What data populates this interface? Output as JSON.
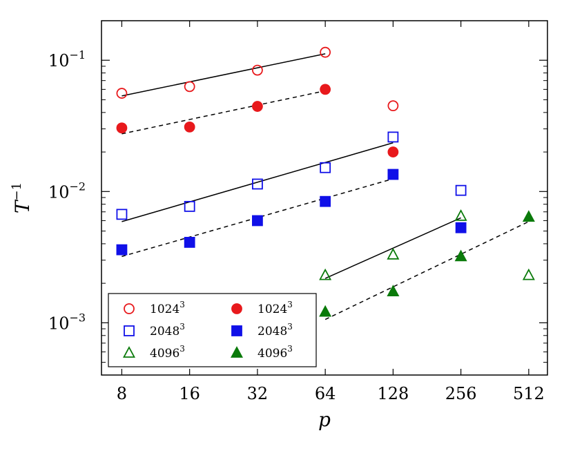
{
  "chart_data": {
    "type": "scatter",
    "xlabel": "p",
    "ylabel": "T",
    "ylabel_sup": "−1",
    "x_scale": "log2",
    "y_scale": "log10",
    "xlim": [
      6.5,
      620
    ],
    "ylim": [
      0.0004,
      0.2
    ],
    "x_ticks": [
      {
        "value": 8,
        "label": "8"
      },
      {
        "value": 16,
        "label": "16"
      },
      {
        "value": 32,
        "label": "32"
      },
      {
        "value": 64,
        "label": "64"
      },
      {
        "value": 128,
        "label": "128"
      },
      {
        "value": 256,
        "label": "256"
      },
      {
        "value": 512,
        "label": "512"
      }
    ],
    "y_ticks": [
      {
        "value": 0.1,
        "base": "10",
        "exp": "−1"
      },
      {
        "value": 0.01,
        "base": "10",
        "exp": "−2"
      },
      {
        "value": 0.001,
        "base": "10",
        "exp": "−3"
      }
    ],
    "legend_position": "lower-left",
    "series": [
      {
        "label": "1024",
        "sup": "3",
        "marker": "circle",
        "fill": "open",
        "color": "#e8191c",
        "x": [
          8,
          16,
          32,
          64,
          128
        ],
        "y": [
          0.056,
          0.063,
          0.084,
          0.115,
          0.045
        ]
      },
      {
        "label": "2048",
        "sup": "3",
        "marker": "square",
        "fill": "open",
        "color": "#1010e8",
        "x": [
          8,
          16,
          32,
          64,
          128,
          256
        ],
        "y": [
          0.0067,
          0.0077,
          0.0114,
          0.0152,
          0.026,
          0.0102
        ]
      },
      {
        "label": "4096",
        "sup": "3",
        "marker": "triangle",
        "fill": "open",
        "color": "#0a7a0a",
        "x": [
          64,
          128,
          256,
          512
        ],
        "y": [
          0.0023,
          0.0033,
          0.0065,
          0.0023
        ]
      },
      {
        "label": "1024",
        "sup": "3",
        "marker": "circle",
        "fill": "filled",
        "color": "#e8191c",
        "x": [
          8,
          16,
          32,
          64,
          128
        ],
        "y": [
          0.0305,
          0.031,
          0.0445,
          0.06,
          0.02
        ]
      },
      {
        "label": "2048",
        "sup": "3",
        "marker": "square",
        "fill": "filled",
        "color": "#1010e8",
        "x": [
          8,
          16,
          32,
          64,
          128,
          256
        ],
        "y": [
          0.0036,
          0.0041,
          0.006,
          0.0084,
          0.0135,
          0.0053
        ]
      },
      {
        "label": "4096",
        "sup": "3",
        "marker": "triangle",
        "fill": "filled",
        "color": "#0a7a0a",
        "x": [
          64,
          128,
          256,
          512
        ],
        "y": [
          0.00121,
          0.00173,
          0.0032,
          0.0064
        ]
      }
    ],
    "fit_lines": [
      {
        "style": "solid",
        "x": [
          8,
          64
        ],
        "y": [
          0.0535,
          0.112
        ]
      },
      {
        "style": "dashed",
        "x": [
          8,
          64
        ],
        "y": [
          0.0275,
          0.0585
        ]
      },
      {
        "style": "solid",
        "x": [
          8,
          128
        ],
        "y": [
          0.0059,
          0.0235
        ]
      },
      {
        "style": "dashed",
        "x": [
          8,
          128
        ],
        "y": [
          0.0032,
          0.0125
        ]
      },
      {
        "style": "solid",
        "x": [
          64,
          256
        ],
        "y": [
          0.00218,
          0.0063
        ]
      },
      {
        "style": "dashed",
        "x": [
          64,
          512
        ],
        "y": [
          0.00106,
          0.0059
        ]
      }
    ]
  }
}
